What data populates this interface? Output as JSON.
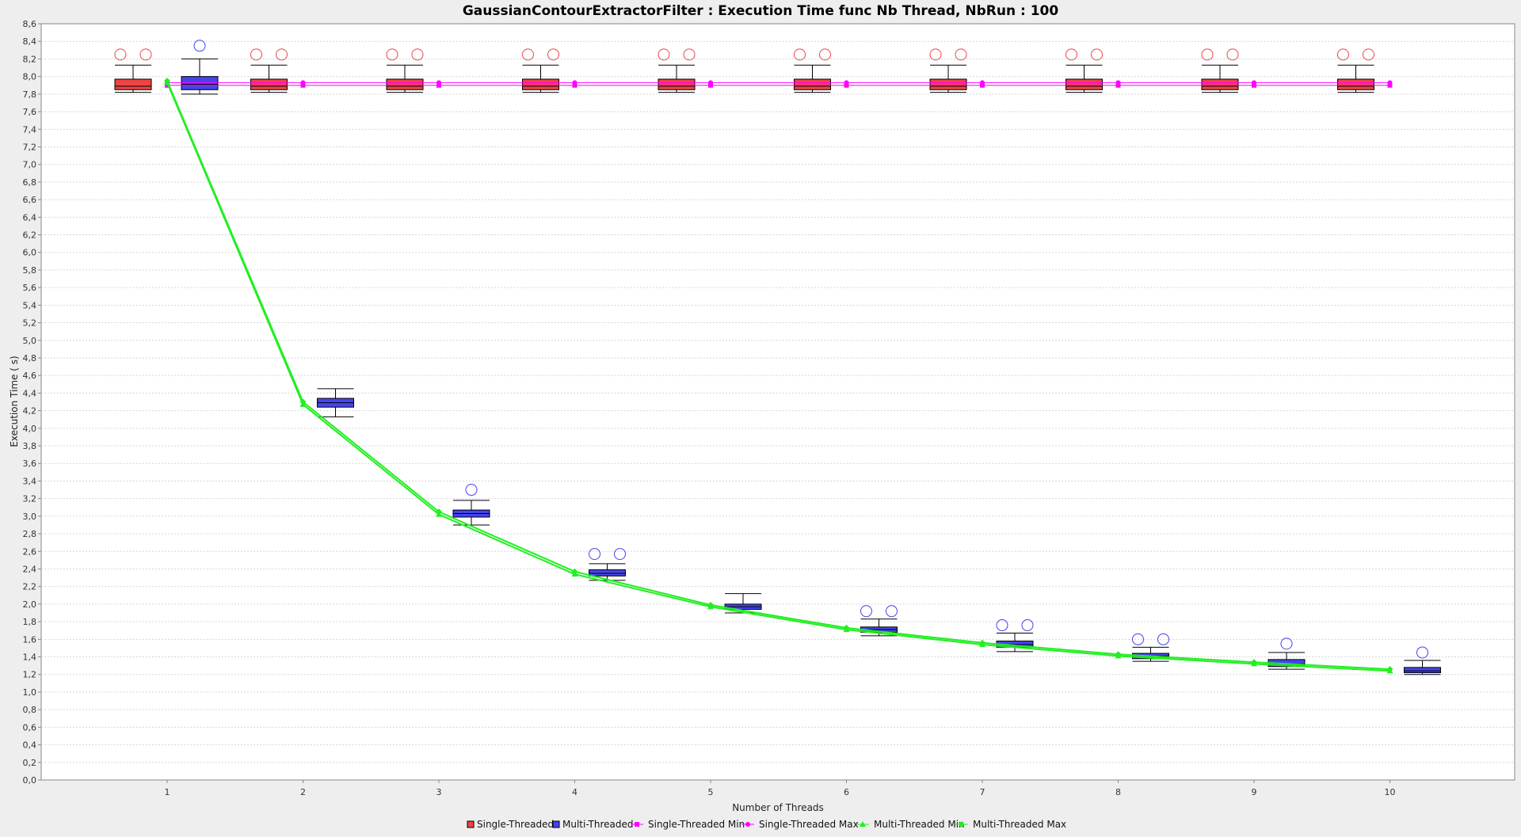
{
  "chart_data": {
    "type": "box",
    "title": "GaussianContourExtractorFilter : Execution Time func Nb Thread, NbRun : 100",
    "xlabel": "Number of Threads",
    "ylabel": "Execution Time (   s)",
    "ylim": [
      0.0,
      8.6
    ],
    "y_ticks": [
      "0,0",
      "0,2",
      "0,4",
      "0,6",
      "0,8",
      "1,0",
      "1,2",
      "1,4",
      "1,6",
      "1,8",
      "2,0",
      "2,2",
      "2,4",
      "2,6",
      "2,8",
      "3,0",
      "3,2",
      "3,4",
      "3,6",
      "3,8",
      "4,0",
      "4,2",
      "4,4",
      "4,6",
      "4,8",
      "5,0",
      "5,2",
      "5,4",
      "5,6",
      "5,8",
      "6,0",
      "6,2",
      "6,4",
      "6,6",
      "6,8",
      "7,0",
      "7,2",
      "7,4",
      "7,6",
      "7,8",
      "8,0",
      "8,2",
      "8,4",
      "8,6"
    ],
    "categories": [
      "1",
      "2",
      "3",
      "4",
      "5",
      "6",
      "7",
      "8",
      "9",
      "10"
    ],
    "grid": true,
    "legend_position": "bottom",
    "colors": {
      "single_box": "#ee4444",
      "multi_box": "#4444ee",
      "single_line": "#ff00ff",
      "multi_line": "#22ee22",
      "plot_bg": "#ffffff",
      "grid": "#d6d6d6"
    },
    "box_series": [
      {
        "name": "Single-Threaded",
        "boxes": [
          {
            "q1": 7.85,
            "median": 7.89,
            "q3": 7.97,
            "whisker_low": 7.82,
            "whisker_high": 8.13,
            "outliers": [
              8.25,
              8.25
            ]
          },
          {
            "q1": 7.85,
            "median": 7.89,
            "q3": 7.97,
            "whisker_low": 7.82,
            "whisker_high": 8.13,
            "outliers": [
              8.25,
              8.25
            ]
          },
          {
            "q1": 7.85,
            "median": 7.89,
            "q3": 7.97,
            "whisker_low": 7.82,
            "whisker_high": 8.13,
            "outliers": [
              8.25,
              8.25
            ]
          },
          {
            "q1": 7.85,
            "median": 7.89,
            "q3": 7.97,
            "whisker_low": 7.82,
            "whisker_high": 8.13,
            "outliers": [
              8.25,
              8.25
            ]
          },
          {
            "q1": 7.85,
            "median": 7.89,
            "q3": 7.97,
            "whisker_low": 7.82,
            "whisker_high": 8.13,
            "outliers": [
              8.25,
              8.25
            ]
          },
          {
            "q1": 7.85,
            "median": 7.89,
            "q3": 7.97,
            "whisker_low": 7.82,
            "whisker_high": 8.13,
            "outliers": [
              8.25,
              8.25
            ]
          },
          {
            "q1": 7.85,
            "median": 7.89,
            "q3": 7.97,
            "whisker_low": 7.82,
            "whisker_high": 8.13,
            "outliers": [
              8.25,
              8.25
            ]
          },
          {
            "q1": 7.85,
            "median": 7.89,
            "q3": 7.97,
            "whisker_low": 7.82,
            "whisker_high": 8.13,
            "outliers": [
              8.25,
              8.25
            ]
          },
          {
            "q1": 7.85,
            "median": 7.89,
            "q3": 7.97,
            "whisker_low": 7.82,
            "whisker_high": 8.13,
            "outliers": [
              8.25,
              8.25
            ]
          },
          {
            "q1": 7.85,
            "median": 7.89,
            "q3": 7.97,
            "whisker_low": 7.82,
            "whisker_high": 8.13,
            "outliers": [
              8.25,
              8.25
            ]
          }
        ]
      },
      {
        "name": "Multi-Threaded",
        "boxes": [
          {
            "q1": 7.85,
            "median": 7.91,
            "q3": 8.0,
            "whisker_low": 7.8,
            "whisker_high": 8.2,
            "outliers": [
              8.35
            ]
          },
          {
            "q1": 4.24,
            "median": 4.29,
            "q3": 4.34,
            "whisker_low": 4.13,
            "whisker_high": 4.45,
            "outliers": []
          },
          {
            "q1": 2.99,
            "median": 3.03,
            "q3": 3.07,
            "whisker_low": 2.9,
            "whisker_high": 3.18,
            "outliers": [
              3.3
            ]
          },
          {
            "q1": 2.32,
            "median": 2.35,
            "q3": 2.39,
            "whisker_low": 2.27,
            "whisker_high": 2.46,
            "outliers": [
              2.57,
              2.57
            ]
          },
          {
            "q1": 1.94,
            "median": 1.97,
            "q3": 2.0,
            "whisker_low": 1.9,
            "whisker_high": 2.12,
            "outliers": []
          },
          {
            "q1": 1.68,
            "median": 1.71,
            "q3": 1.74,
            "whisker_low": 1.64,
            "whisker_high": 1.83,
            "outliers": [
              1.92,
              1.92
            ]
          },
          {
            "q1": 1.51,
            "median": 1.54,
            "q3": 1.58,
            "whisker_low": 1.46,
            "whisker_high": 1.67,
            "outliers": [
              1.76,
              1.76
            ]
          },
          {
            "q1": 1.38,
            "median": 1.41,
            "q3": 1.44,
            "whisker_low": 1.35,
            "whisker_high": 1.51,
            "outliers": [
              1.6,
              1.6
            ]
          },
          {
            "q1": 1.29,
            "median": 1.32,
            "q3": 1.37,
            "whisker_low": 1.26,
            "whisker_high": 1.45,
            "outliers": [
              1.55
            ]
          },
          {
            "q1": 1.22,
            "median": 1.24,
            "q3": 1.28,
            "whisker_low": 1.2,
            "whisker_high": 1.36,
            "outliers": [
              1.45
            ]
          }
        ]
      }
    ],
    "line_series": [
      {
        "name": "Single-Threaded Min",
        "marker": "square",
        "values": [
          7.9,
          7.9,
          7.9,
          7.9,
          7.9,
          7.9,
          7.9,
          7.9,
          7.9,
          7.9
        ]
      },
      {
        "name": "Single-Threaded Max",
        "marker": "circle",
        "values": [
          7.93,
          7.93,
          7.93,
          7.93,
          7.93,
          7.93,
          7.93,
          7.93,
          7.93,
          7.93
        ]
      },
      {
        "name": "Multi-Threaded Min",
        "marker": "triangle",
        "values": [
          7.93,
          4.27,
          3.02,
          2.34,
          1.97,
          1.71,
          1.54,
          1.41,
          1.32,
          1.24
        ]
      },
      {
        "name": "Multi-Threaded Max",
        "marker": "diamond",
        "values": [
          7.95,
          4.3,
          3.05,
          2.37,
          1.99,
          1.73,
          1.56,
          1.43,
          1.34,
          1.26
        ]
      }
    ],
    "legend": [
      {
        "label": "Single-Threaded",
        "kind": "box",
        "color": "#ee4444"
      },
      {
        "label": "Multi-Threaded",
        "kind": "box",
        "color": "#4444ee"
      },
      {
        "label": "Single-Threaded Min",
        "kind": "line-square",
        "color": "#ff00ff"
      },
      {
        "label": "Single-Threaded Max",
        "kind": "line-circle",
        "color": "#ff00ff"
      },
      {
        "label": "Multi-Threaded Min",
        "kind": "line-triangle",
        "color": "#22ee22"
      },
      {
        "label": "Multi-Threaded Max",
        "kind": "line-diamond",
        "color": "#22ee22"
      }
    ]
  }
}
